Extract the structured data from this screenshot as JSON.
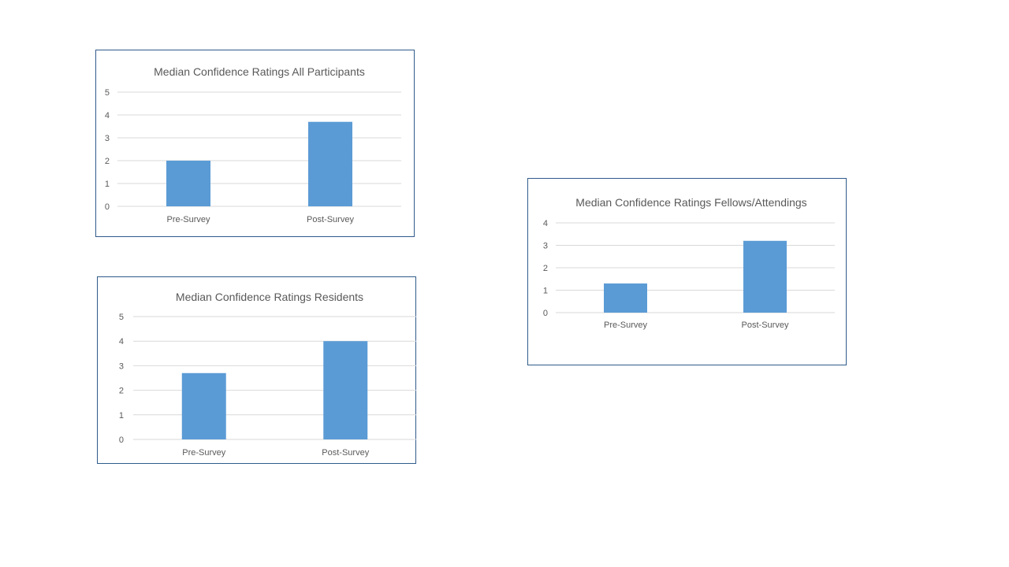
{
  "chart_data": [
    {
      "type": "bar",
      "title": "Median Confidence Ratings All Participants",
      "categories": [
        "Pre-Survey",
        "Post-Survey"
      ],
      "values": [
        2,
        3.7
      ],
      "ylim": [
        0,
        5
      ],
      "yticks": [
        "0",
        "1",
        "2",
        "3",
        "4",
        "5"
      ],
      "xlabel": "",
      "ylabel": "",
      "grid": true,
      "color": "#5b9bd5"
    },
    {
      "type": "bar",
      "title": "Median Confidence Ratings Residents",
      "categories": [
        "Pre-Survey",
        "Post-Survey"
      ],
      "values": [
        2.7,
        4
      ],
      "ylim": [
        0,
        5
      ],
      "yticks": [
        "0",
        "1",
        "2",
        "3",
        "4",
        "5"
      ],
      "xlabel": "",
      "ylabel": "",
      "grid": true,
      "color": "#5b9bd5"
    },
    {
      "type": "bar",
      "title": "Median Confidence Ratings Fellows/Attendings",
      "categories": [
        "Pre-Survey",
        "Post-Survey"
      ],
      "values": [
        1.3,
        3.2
      ],
      "ylim": [
        0,
        4
      ],
      "yticks": [
        "0",
        "1",
        "2",
        "3",
        "4"
      ],
      "xlabel": "",
      "ylabel": "",
      "grid": true,
      "color": "#5b9bd5"
    }
  ]
}
